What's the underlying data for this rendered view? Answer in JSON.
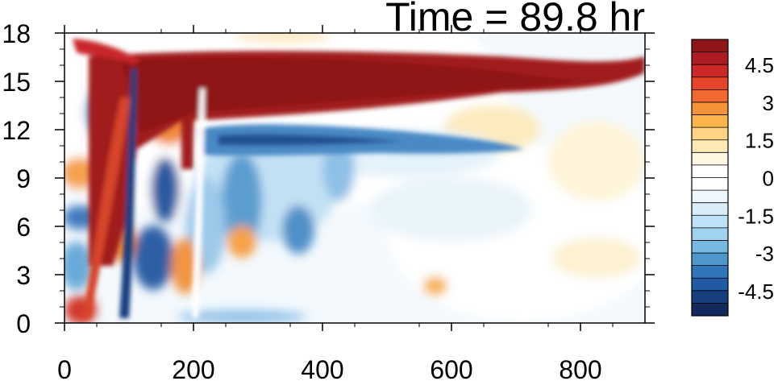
{
  "chart_data": {
    "type": "heatmap",
    "title": "Time = 89.8 hr",
    "xlabel": "",
    "ylabel": "",
    "xlim": [
      0,
      900
    ],
    "ylim": [
      0,
      18
    ],
    "x_ticks": [
      0,
      200,
      400,
      600,
      800
    ],
    "y_ticks": [
      0,
      3,
      6,
      9,
      12,
      15,
      18
    ],
    "colorbar": {
      "levels": [
        -5.5,
        -5,
        -4.5,
        -4,
        -3.5,
        -3,
        -2.5,
        -2,
        -1.5,
        -1,
        -0.5,
        0,
        0.5,
        1,
        1.5,
        2,
        2.5,
        3,
        3.5,
        4,
        4.5,
        5,
        5.5
      ],
      "labels": [
        "4.5",
        "3",
        "1.5",
        "0",
        "-1.5",
        "-3",
        "-4.5"
      ],
      "label_values": [
        4.5,
        3,
        1.5,
        0,
        -1.5,
        -3,
        -4.5
      ],
      "colors_high_to_low": [
        "#8e1518",
        "#ae1c22",
        "#cc2827",
        "#e4452b",
        "#f06a2f",
        "#f7923a",
        "#fcb44d",
        "#fdd386",
        "#feeab5",
        "#fff7e1",
        "#ffffff",
        "#ffffff",
        "#eef7fc",
        "#d8edf8",
        "#bee2f5",
        "#9fd3f0",
        "#76b9e2",
        "#4d97cd",
        "#3176b8",
        "#1f5aa3",
        "#173e7f",
        "#13295b"
      ]
    },
    "features": [
      {
        "name": "upper warm band",
        "x_range": [
          110,
          900
        ],
        "y_center": 14.8,
        "value": 5.5
      },
      {
        "name": "lower cool band",
        "x_range": [
          210,
          640
        ],
        "y_center": 11.4,
        "value": -3
      },
      {
        "name": "leading warm front",
        "x_range": [
          95,
          115
        ],
        "y_range": [
          0,
          15
        ],
        "value": 4
      },
      {
        "name": "leading cool front",
        "x_range": [
          150,
          170
        ],
        "y_range": [
          0,
          16
        ],
        "value": -4.5
      }
    ]
  }
}
